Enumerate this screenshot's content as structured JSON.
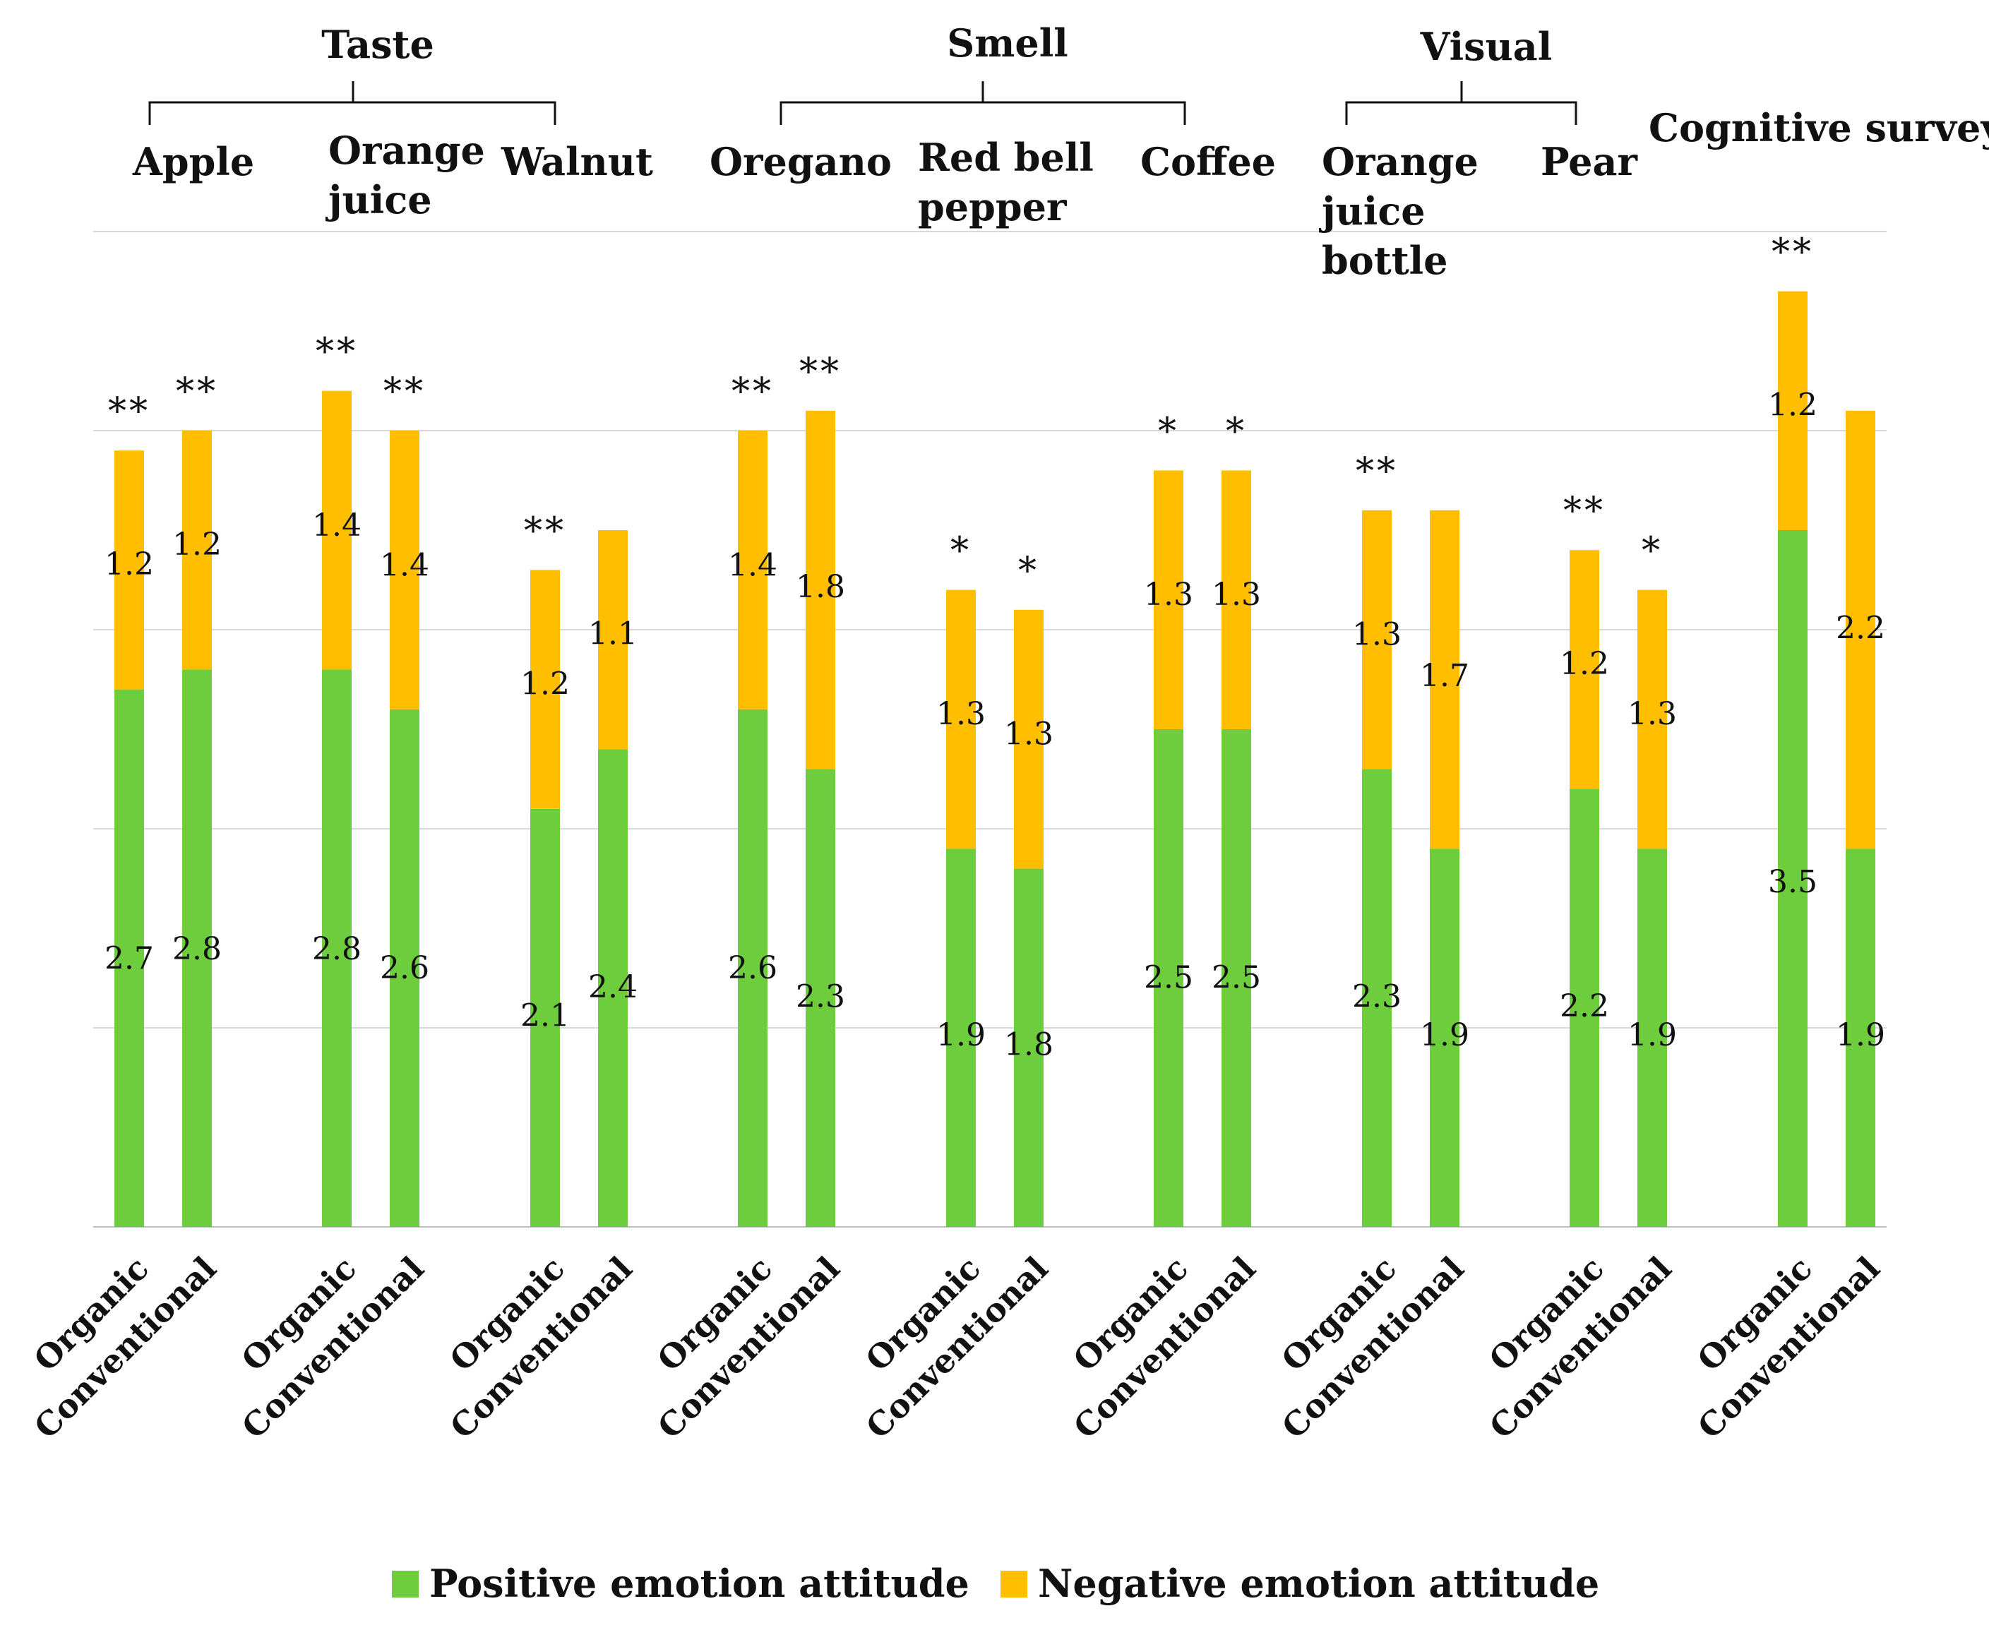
{
  "chart_data": {
    "type": "bar",
    "stacked": true,
    "ylim": [
      0,
      5
    ],
    "grid": true,
    "legend_position": "bottom",
    "groups": [
      {
        "label": "Taste",
        "subgroups": [
          "Apple",
          "Orange juice",
          "Walnut"
        ]
      },
      {
        "label": "Smell",
        "subgroups": [
          "Oregano",
          "Red bell pepper",
          "Coffee"
        ]
      },
      {
        "label": "Visual",
        "subgroups": [
          "Orange juice bottle",
          "Pear"
        ]
      },
      {
        "label": "",
        "subgroups": [
          "Cognitive survey"
        ]
      }
    ],
    "categories": [
      "Apple",
      "Orange juice",
      "Walnut",
      "Oregano",
      "Red bell pepper",
      "Coffee",
      "Orange juice bottle",
      "Pear",
      "Cognitive survey"
    ],
    "category_lines": [
      [
        "Apple"
      ],
      [
        "Orange",
        "juice"
      ],
      [
        "Walnut"
      ],
      [
        "Oregano"
      ],
      [
        "Red bell",
        "pepper"
      ],
      [
        "Coffee"
      ],
      [
        "Orange",
        "juice",
        "bottle"
      ],
      [
        "Pear"
      ],
      [
        "Cognitive survey"
      ]
    ],
    "bar_labels": [
      "Organic",
      "Conventional"
    ],
    "series": [
      {
        "name": "Positive emotion attitude",
        "color": "#6dcd3c",
        "values": [
          [
            2.7,
            2.8
          ],
          [
            2.8,
            2.6
          ],
          [
            2.1,
            2.4
          ],
          [
            2.6,
            2.3
          ],
          [
            1.9,
            1.8
          ],
          [
            2.5,
            2.5
          ],
          [
            2.3,
            1.9
          ],
          [
            2.2,
            1.9
          ],
          [
            3.5,
            1.9
          ]
        ]
      },
      {
        "name": "Negative emotion attitude",
        "color": "#ffbf00",
        "values": [
          [
            1.2,
            1.2
          ],
          [
            1.4,
            1.4
          ],
          [
            1.2,
            1.1
          ],
          [
            1.4,
            1.8
          ],
          [
            1.3,
            1.3
          ],
          [
            1.3,
            1.3
          ],
          [
            1.3,
            1.7
          ],
          [
            1.2,
            1.3
          ],
          [
            1.2,
            2.2
          ]
        ]
      }
    ],
    "significance": [
      [
        "**",
        "**"
      ],
      [
        "**",
        "**"
      ],
      [
        "**",
        ""
      ],
      [
        "**",
        "**"
      ],
      [
        "*",
        "*"
      ],
      [
        "*",
        "*"
      ],
      [
        "**",
        ""
      ],
      [
        "**",
        "*"
      ],
      [
        "**",
        ""
      ]
    ]
  }
}
